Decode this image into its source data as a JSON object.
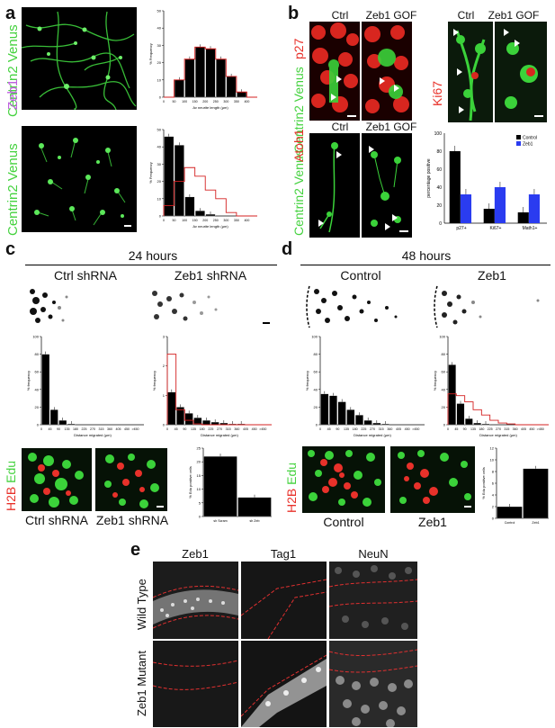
{
  "panel_letters": {
    "a": "a",
    "b": "b",
    "c": "c",
    "d": "d",
    "e": "e"
  },
  "panel_a": {
    "row1_marker": "Centrin2 Venus",
    "row2_marker_red": "Zeb1",
    "row2_marker_green": "Centrin2 Venus"
  },
  "panel_b": {
    "col_ctrl": "Ctrl",
    "col_gof": "Zeb1 GOF",
    "marker_centrin": "Centrin2 Venus",
    "marker_p27": "p27",
    "marker_ki67": "Ki67",
    "marker_atoh1": "Atoh1",
    "marker_centrin_atoh": "Centrin2 Venus"
  },
  "panel_c": {
    "title": "24 hours",
    "left_label": "Ctrl shRNA",
    "right_label": "Zeb1 shRNA",
    "h2b": "H2B",
    "edu": "Edu",
    "bottom_left": "Ctrl shRNA",
    "bottom_right": "Zeb1 shRNA"
  },
  "panel_d": {
    "title": "48 hours",
    "left_label": "Control",
    "right_label": "Zeb1",
    "h2b": "H2B",
    "edu": "Edu",
    "bottom_left": "Control",
    "bottom_right": "Zeb1"
  },
  "panel_e": {
    "col1": "Zeb1",
    "col2": "Tag1",
    "col3": "NeuN",
    "row1": "Wild Type",
    "row2": "Zeb1 Mutant"
  },
  "colors": {
    "green": "#39d23a",
    "red": "#e8312a",
    "bar": "#000000",
    "line": "#d42020",
    "blue": "#2a3cf0"
  },
  "chart_data": [
    {
      "id": "a-top",
      "type": "bar",
      "categories": [
        "0",
        "50",
        "100",
        "150",
        "200",
        "250",
        "300",
        "350",
        "400"
      ],
      "values": [
        0,
        10,
        22,
        29,
        28,
        22,
        12,
        3,
        0
      ],
      "overlay_line": [
        0,
        10,
        22,
        29,
        28,
        22,
        12,
        3,
        0
      ],
      "ylim": [
        0,
        50
      ],
      "yticks": [
        "0",
        "10",
        "20",
        "30",
        "40",
        "50"
      ],
      "ylabel": "% Frequency",
      "xlabel": "Av neurite length (µm)"
    },
    {
      "id": "a-bottom",
      "type": "bar",
      "categories": [
        "0",
        "50",
        "100",
        "150",
        "200",
        "250",
        "300",
        "350",
        "400"
      ],
      "values": [
        46,
        41,
        11,
        3,
        1,
        0,
        0,
        0,
        0
      ],
      "overlay_line": [
        6,
        20,
        28,
        23,
        15,
        10,
        2,
        0,
        0
      ],
      "ylim": [
        0,
        50
      ],
      "yticks": [
        "0",
        "10",
        "20",
        "30",
        "40",
        "50"
      ],
      "ylabel": "% Frequency",
      "xlabel": "Av neurite length (µm)"
    },
    {
      "id": "b-bars",
      "type": "bar",
      "categories": [
        "p27+",
        "Ki67+",
        "Math1+"
      ],
      "series": [
        {
          "name": "Control",
          "values": [
            80,
            16,
            12
          ]
        },
        {
          "name": "Zeb1",
          "values": [
            32,
            40,
            32
          ]
        }
      ],
      "ylim": [
        0,
        100
      ],
      "yticks": [
        "0",
        "20",
        "40",
        "60",
        "80",
        "100"
      ],
      "ylabel": "percentage positive",
      "legend": "top-right"
    },
    {
      "id": "c-left",
      "type": "bar",
      "categories": [
        "0",
        "45",
        "90",
        "135",
        "180",
        "225",
        "270",
        "315",
        "360",
        "405",
        "450",
        ">450"
      ],
      "values": [
        80,
        17,
        5,
        1,
        0,
        0,
        0,
        0,
        0,
        0,
        0,
        0
      ],
      "ylim": [
        0,
        100
      ],
      "yticks": [
        "0",
        "20",
        "40",
        "60",
        "80",
        "100"
      ],
      "ylabel": "% frequency",
      "xlabel": "Distance migrated (µm)"
    },
    {
      "id": "c-right",
      "type": "bar",
      "categories": [
        "0",
        "45",
        "90",
        "135",
        "180",
        "225",
        "270",
        "315",
        "360",
        "405",
        "450",
        ">450"
      ],
      "values": [
        37,
        20,
        13,
        8,
        5,
        3,
        2,
        1,
        1,
        0,
        0,
        0
      ],
      "overlay_line": [
        80,
        17,
        5,
        1,
        0,
        0,
        0,
        0,
        0,
        0,
        0,
        0
      ],
      "ylim": [
        0,
        100
      ],
      "yticks": [
        "0",
        "1",
        "2",
        "3"
      ],
      "ylabel": "% frequency",
      "xlabel": "Distance migrated (µm)"
    },
    {
      "id": "c-edu",
      "type": "bar",
      "categories": [
        "sh Scram",
        "sh Zeb"
      ],
      "values": [
        22,
        7
      ],
      "ylim": [
        0,
        25
      ],
      "yticks": [
        "0",
        "5",
        "10",
        "15",
        "20",
        "25"
      ],
      "ylabel": "% Edu positive cells"
    },
    {
      "id": "d-left",
      "type": "bar",
      "categories": [
        "0",
        "45",
        "90",
        "135",
        "180",
        "225",
        "270",
        "315",
        "360",
        "405",
        "450",
        ">450"
      ],
      "values": [
        35,
        33,
        26,
        17,
        11,
        5,
        2,
        1,
        0,
        0,
        0,
        0
      ],
      "ylim": [
        0,
        100
      ],
      "yticks": [
        "0",
        "20",
        "40",
        "60",
        "80",
        "100"
      ],
      "ylabel": "% frequency",
      "xlabel": "Distance migrated (µm)"
    },
    {
      "id": "d-right",
      "type": "bar",
      "categories": [
        "0",
        "45",
        "90",
        "135",
        "180",
        "225",
        "270",
        "315",
        "360",
        "405",
        "450",
        ">450"
      ],
      "values": [
        68,
        24,
        7,
        2,
        1,
        0,
        0,
        0,
        0,
        0,
        0,
        0
      ],
      "overlay_line": [
        35,
        33,
        26,
        17,
        11,
        5,
        2,
        1,
        0,
        0,
        0,
        0
      ],
      "ylim": [
        0,
        100
      ],
      "yticks": [
        "0",
        "20",
        "40",
        "60",
        "80",
        "100"
      ],
      "ylabel": "% frequency",
      "xlabel": "Distance migrated (µm)"
    },
    {
      "id": "d-edu",
      "type": "bar",
      "categories": [
        "Control",
        "Zeb1"
      ],
      "values": [
        2,
        8.5
      ],
      "ylim": [
        0,
        12
      ],
      "yticks": [
        "0",
        "2",
        "4",
        "6",
        "8",
        "10",
        "12"
      ],
      "ylabel": "% Edu positive cells"
    }
  ]
}
